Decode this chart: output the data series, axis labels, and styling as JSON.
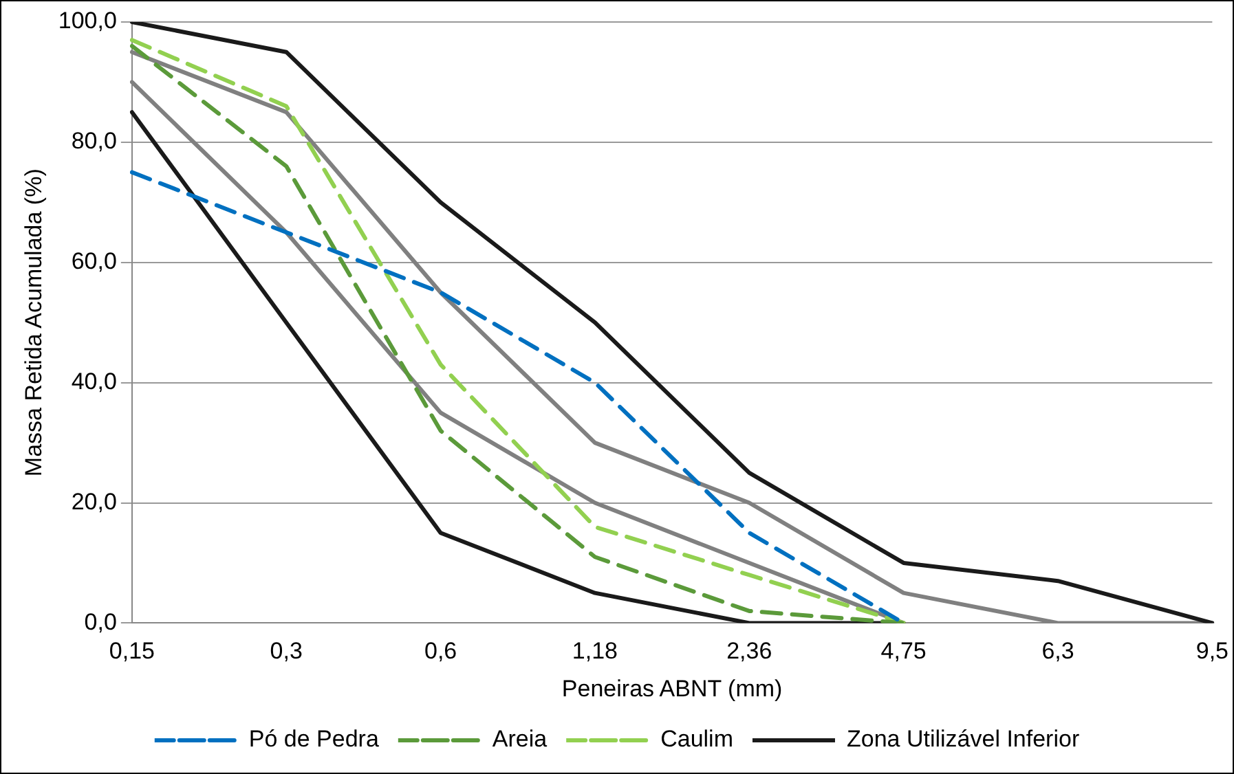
{
  "chart_data": {
    "type": "line",
    "xlabel": "Peneiras ABNT (mm)",
    "ylabel": "Massa Retida Acumulada (%)",
    "categories": [
      "0,15",
      "0,3",
      "0,6",
      "1,18",
      "2,36",
      "4,75",
      "6,3",
      "9,5"
    ],
    "ylim": [
      0,
      100
    ],
    "yticks": [
      {
        "value": 0,
        "label": "0,0"
      },
      {
        "value": 20,
        "label": "20,0"
      },
      {
        "value": 40,
        "label": "40,0"
      },
      {
        "value": 60,
        "label": "60,0"
      },
      {
        "value": 80,
        "label": "80,0"
      },
      {
        "value": 100,
        "label": "100,0"
      }
    ],
    "grid": "y",
    "legend": "bottom",
    "marker": "none",
    "series": [
      {
        "name": "Pó de Pedra",
        "color": "#0070c0",
        "line_style": "dashed",
        "values": [
          75,
          65,
          55,
          40,
          15,
          0,
          null,
          null
        ]
      },
      {
        "name": "Areia",
        "color": "#5b9a3a",
        "line_style": "dashed",
        "values": [
          96,
          76,
          32,
          11,
          2,
          0,
          null,
          null
        ]
      },
      {
        "name": "Caulim",
        "color": "#92d050",
        "line_style": "dashed",
        "values": [
          97,
          86,
          43,
          16,
          8,
          0,
          null,
          null
        ]
      },
      {
        "name": "Zona Utilizável Inferior",
        "color": "#1a1a1a",
        "line_style": "solid",
        "values": [
          85,
          50,
          15,
          5,
          0,
          0,
          null,
          null
        ]
      },
      {
        "color": "#1a1a1a",
        "line_style": "solid",
        "values": [
          100,
          95,
          70,
          50,
          25,
          10,
          7,
          0
        ]
      },
      {
        "color": "#808080",
        "line_style": "solid",
        "values": [
          90,
          65,
          35,
          20,
          10,
          0,
          null,
          null
        ]
      },
      {
        "color": "#808080",
        "line_style": "solid",
        "values": [
          95,
          85,
          55,
          30,
          20,
          5,
          0,
          0
        ]
      }
    ]
  }
}
